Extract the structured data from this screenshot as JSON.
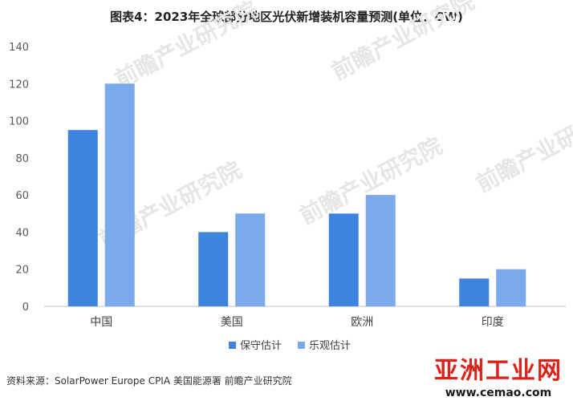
{
  "chart_title": "图表4：2023年全球部分地区光伏新增装机容量预测(单位：GW)",
  "source_note": "资料来源：SolarPower Europe CPIA 美国能源署 前瞻产业研究院",
  "watermark_text": "前瞻产业研究院",
  "site_logo": {
    "name": "亚洲工业网",
    "url": "www.cemao.com"
  },
  "colors": {
    "conservative": "#3f83e0",
    "optimistic": "#7aaaec",
    "axis": "#bfbfbf"
  },
  "chart_data": {
    "type": "bar",
    "title": "图表4：2023年全球部分地区光伏新增装机容量预测(单位：GW)",
    "categories": [
      "中国",
      "美国",
      "欧洲",
      "印度"
    ],
    "series": [
      {
        "name": "保守估计",
        "values": [
          95,
          40,
          50,
          15
        ]
      },
      {
        "name": "乐观估计",
        "values": [
          120,
          50,
          60,
          20
        ]
      }
    ],
    "ylim": [
      0,
      140
    ],
    "yticks": [
      0,
      20,
      40,
      60,
      80,
      100,
      120,
      140
    ],
    "xlabel": "",
    "ylabel": "",
    "grid": false,
    "legend": "bottom"
  }
}
